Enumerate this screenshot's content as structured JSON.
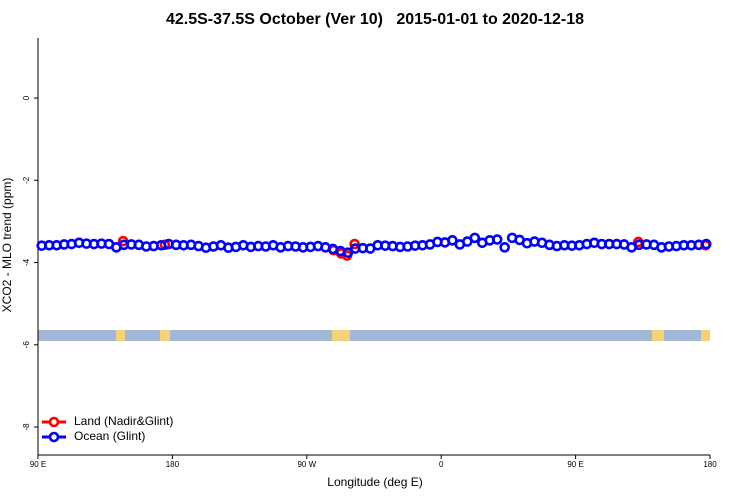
{
  "chart_data": {
    "type": "scatter",
    "title": "42.5S-37.5S October (Ver 10)   2015-01-01 to 2020-12-18",
    "x_label": "Longitude (deg E)",
    "y_label": "XCO2 - MLO trend (ppm)",
    "xlim": [
      90,
      540
    ],
    "ylim": [
      -8.68,
      1.46
    ],
    "xticks": [
      {
        "value": 90,
        "label": "90 E"
      },
      {
        "value": 180,
        "label": "180"
      },
      {
        "value": 270,
        "label": "90 W"
      },
      {
        "value": 360,
        "label": "0"
      },
      {
        "value": 450,
        "label": "90 E"
      },
      {
        "value": 540,
        "label": "180"
      }
    ],
    "yticks": [
      0,
      -2,
      -4,
      -6,
      -8
    ],
    "legend": "bottom-left",
    "series": [
      {
        "name": "Land (Nadir&Glint)",
        "color": "#ff0000",
        "x": [
          147,
          175,
          288,
          293,
          297,
          302,
          492,
          537
        ],
        "values": [
          -3.48,
          -3.57,
          -3.7,
          -3.78,
          -3.83,
          -3.55,
          -3.5,
          -3.58
        ]
      },
      {
        "name": "Ocean (Glint)",
        "color": "#0000ff",
        "x": [
          92.5,
          97.5,
          102.5,
          107.5,
          112.5,
          117.5,
          122.5,
          127.5,
          132.5,
          137.5,
          142.5,
          147.5,
          152.5,
          157.5,
          162.5,
          167.5,
          172.5,
          177.5,
          182.5,
          187.5,
          192.5,
          197.5,
          202.5,
          207.5,
          212.5,
          217.5,
          222.5,
          227.5,
          232.5,
          237.5,
          242.5,
          247.5,
          252.5,
          257.5,
          262.5,
          267.5,
          272.5,
          277.5,
          282.5,
          287.5,
          292.5,
          297.5,
          302.5,
          307.5,
          312.5,
          317.5,
          322.5,
          327.5,
          332.5,
          337.5,
          342.5,
          347.5,
          352.5,
          357.5,
          362.5,
          367.5,
          372.5,
          377.5,
          382.5,
          387.5,
          392.5,
          397.5,
          402.5,
          407.5,
          412.5,
          417.5,
          422.5,
          427.5,
          432.5,
          437.5,
          442.5,
          447.5,
          452.5,
          457.5,
          462.5,
          467.5,
          472.5,
          477.5,
          482.5,
          487.5,
          492.5,
          497.5,
          502.5,
          507.5,
          512.5,
          517.5,
          522.5,
          527.5,
          532.5,
          537.5
        ],
        "values": [
          -3.59,
          -3.58,
          -3.58,
          -3.56,
          -3.55,
          -3.52,
          -3.54,
          -3.55,
          -3.54,
          -3.55,
          -3.63,
          -3.57,
          -3.56,
          -3.57,
          -3.61,
          -3.6,
          -3.58,
          -3.55,
          -3.57,
          -3.58,
          -3.57,
          -3.6,
          -3.64,
          -3.61,
          -3.58,
          -3.64,
          -3.62,
          -3.58,
          -3.62,
          -3.6,
          -3.61,
          -3.58,
          -3.63,
          -3.6,
          -3.61,
          -3.63,
          -3.62,
          -3.6,
          -3.63,
          -3.67,
          -3.72,
          -3.76,
          -3.66,
          -3.65,
          -3.66,
          -3.58,
          -3.59,
          -3.6,
          -3.62,
          -3.61,
          -3.59,
          -3.58,
          -3.56,
          -3.5,
          -3.51,
          -3.46,
          -3.56,
          -3.49,
          -3.4,
          -3.52,
          -3.46,
          -3.44,
          -3.63,
          -3.4,
          -3.45,
          -3.53,
          -3.49,
          -3.52,
          -3.57,
          -3.6,
          -3.58,
          -3.59,
          -3.58,
          -3.55,
          -3.52,
          -3.55,
          -3.55,
          -3.55,
          -3.56,
          -3.63,
          -3.57,
          -3.56,
          -3.57,
          -3.63,
          -3.61,
          -3.6,
          -3.58,
          -3.58,
          -3.57,
          -3.55
        ]
      }
    ]
  }
}
